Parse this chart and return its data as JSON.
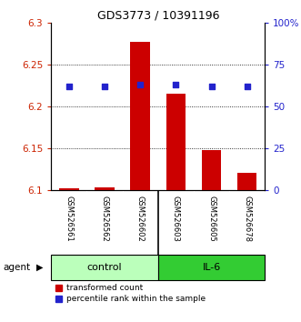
{
  "title": "GDS3773 / 10391196",
  "samples": [
    "GSM526561",
    "GSM526562",
    "GSM526602",
    "GSM526603",
    "GSM526605",
    "GSM526678"
  ],
  "groups": [
    "control",
    "control",
    "control",
    "IL-6",
    "IL-6",
    "IL-6"
  ],
  "bar_values": [
    6.102,
    6.103,
    6.277,
    6.215,
    6.148,
    6.12
  ],
  "bar_base": 6.1,
  "dot_values": [
    62,
    62,
    63,
    63,
    62,
    62
  ],
  "ylim_left": [
    6.1,
    6.3
  ],
  "ylim_right": [
    0,
    100
  ],
  "yticks_left": [
    6.1,
    6.15,
    6.2,
    6.25,
    6.3
  ],
  "yticks_right": [
    0,
    25,
    50,
    75,
    100
  ],
  "ytick_labels_right": [
    "0",
    "25",
    "50",
    "75",
    "100%"
  ],
  "bar_color": "#cc0000",
  "dot_color": "#2222cc",
  "group_colors_control": "#bbffbb",
  "group_colors_il6": "#33cc33",
  "left_tick_color": "#cc2200",
  "right_tick_color": "#2222cc",
  "bg_color": "#ffffff",
  "sample_bg_color": "#cccccc",
  "legend_red_label": "transformed count",
  "legend_blue_label": "percentile rank within the sample",
  "agent_label": "agent",
  "control_label": "control",
  "il6_label": "IL-6",
  "grid_yticks": [
    6.15,
    6.2,
    6.25
  ]
}
